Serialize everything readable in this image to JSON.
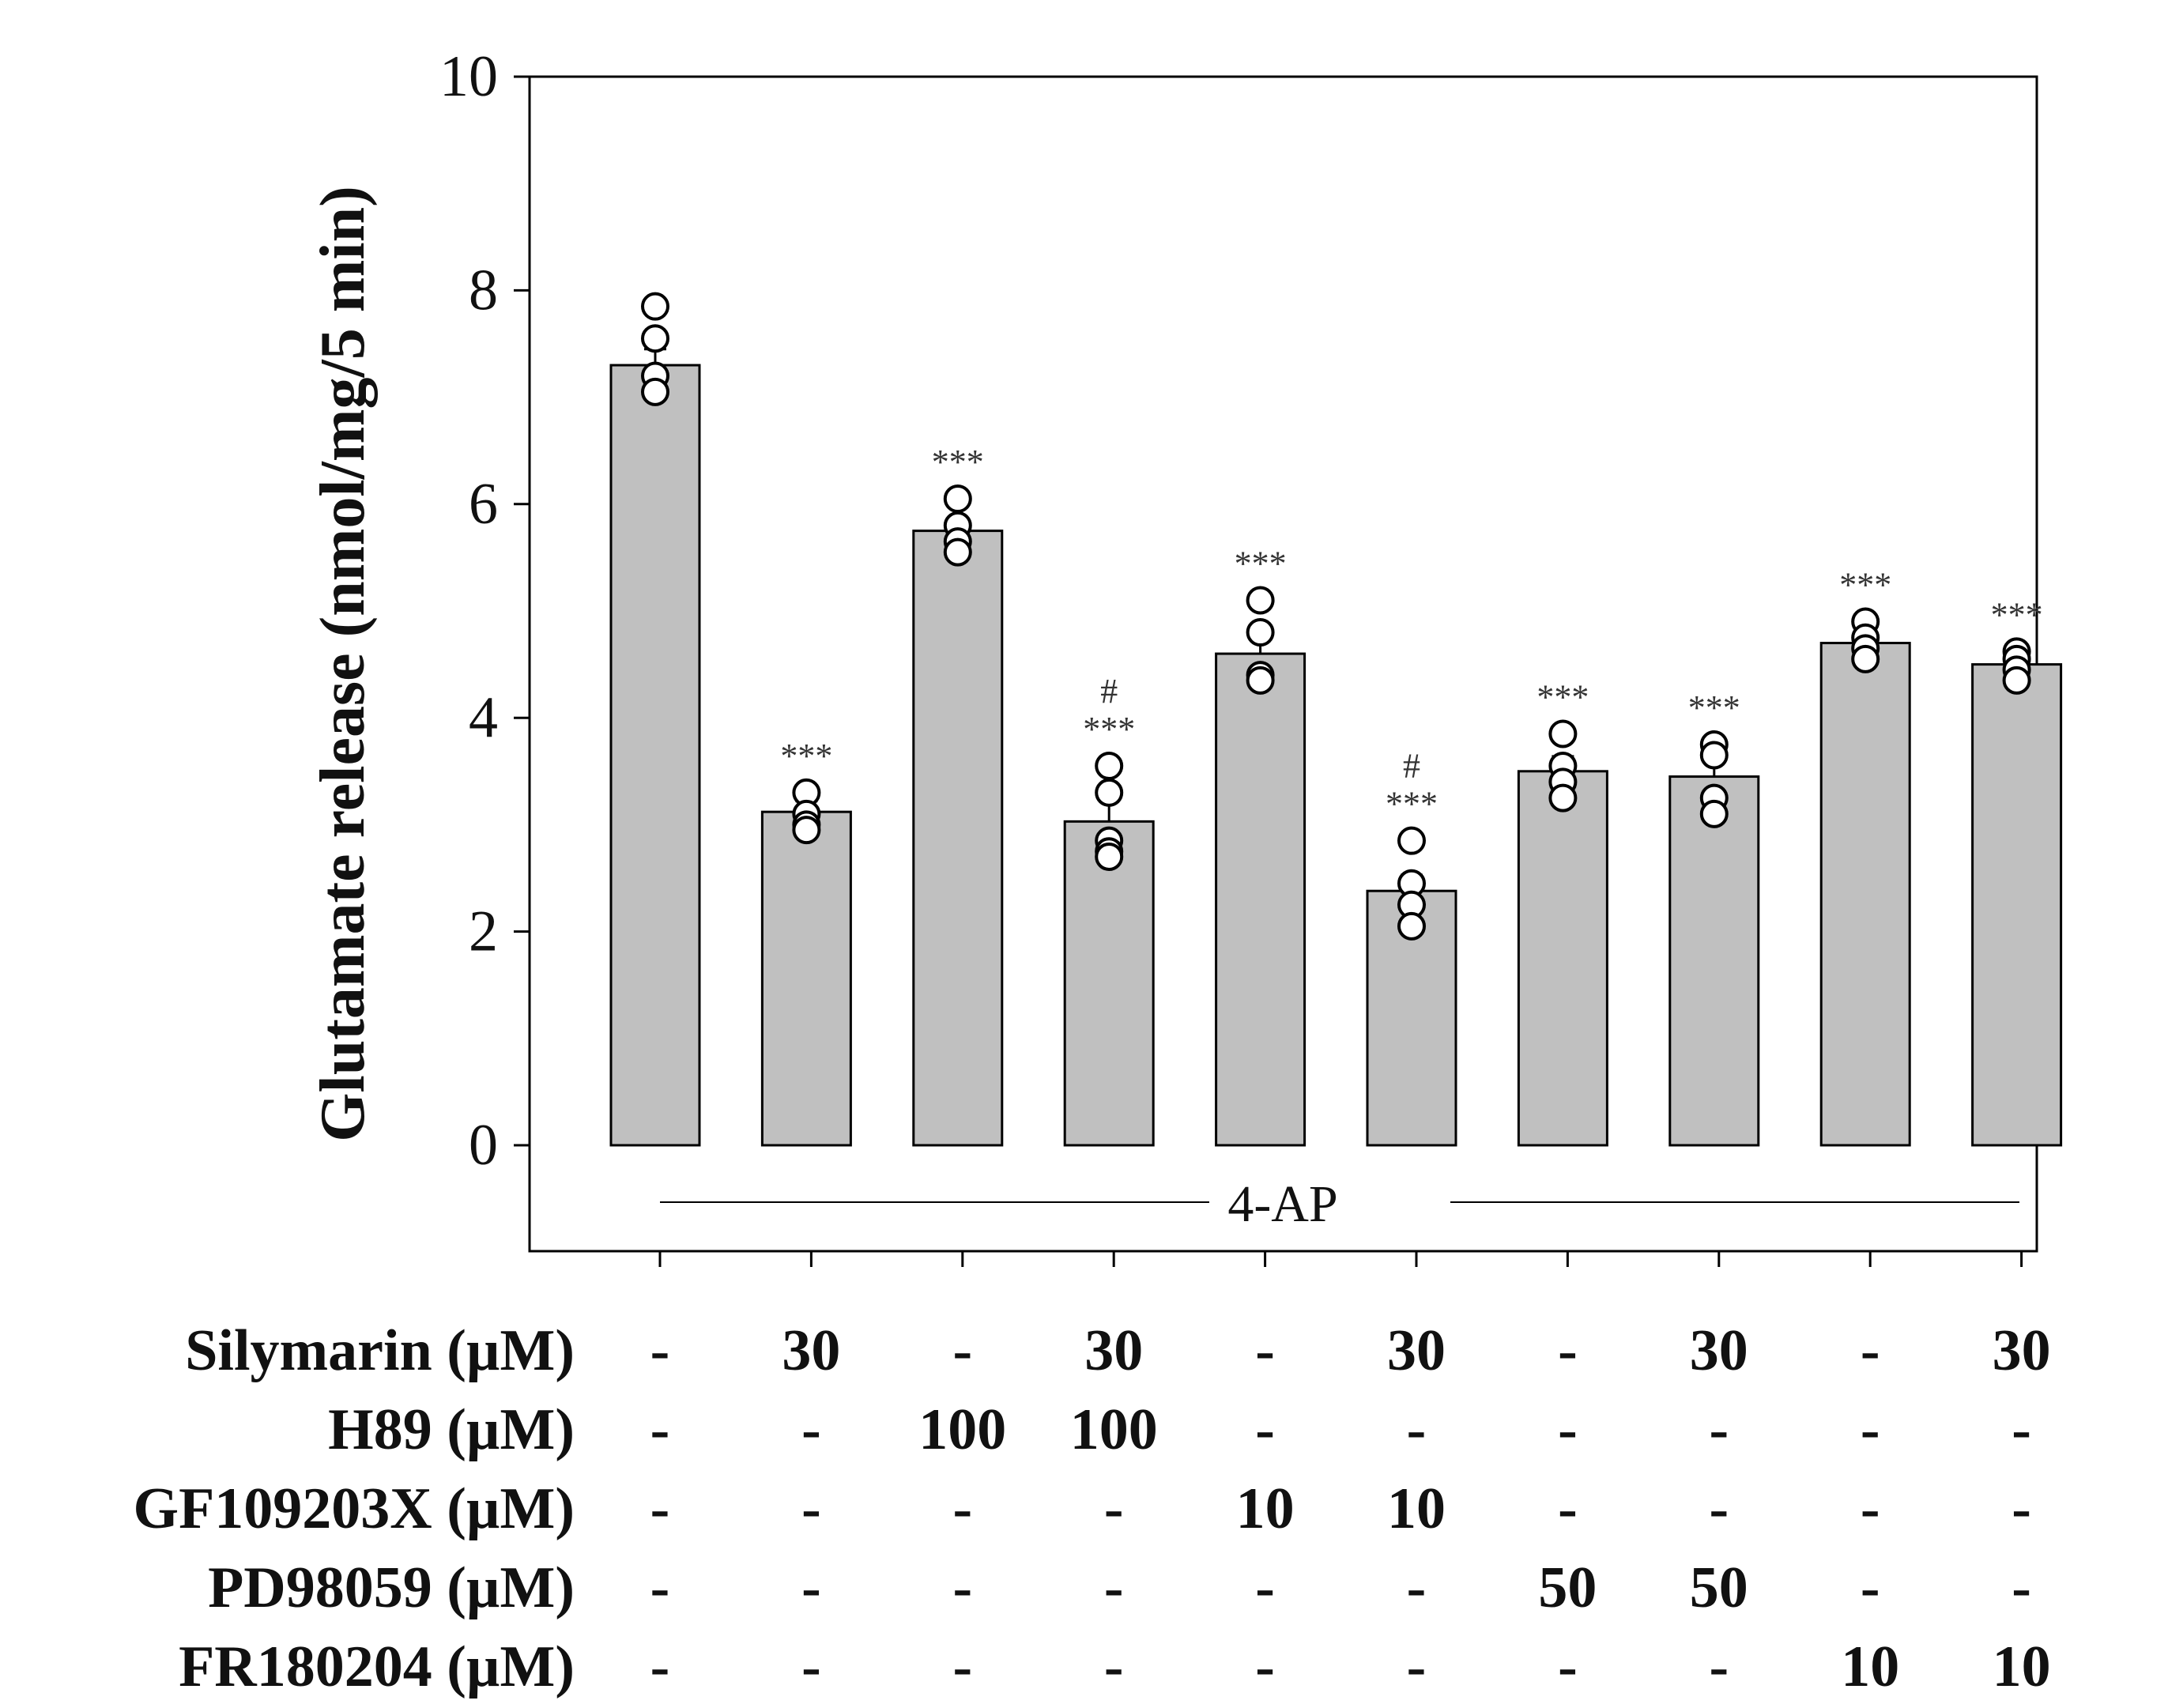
{
  "chart_data": {
    "type": "bar",
    "ylabel": "Glutamate release (nmol/mg/5 min)",
    "ylim": [
      -1,
      10
    ],
    "yticks": [
      0,
      2,
      4,
      6,
      8,
      10
    ],
    "bar_color": "#c0c0c0",
    "stimulus_label": "4-AP",
    "bars": [
      {
        "mean": 7.3,
        "sem": 0.15,
        "points": [
          7.85,
          7.55,
          7.2,
          7.05
        ],
        "sig": ""
      },
      {
        "mean": 3.12,
        "sem": 0.1,
        "points": [
          3.3,
          3.1,
          3.0,
          2.95
        ],
        "sig": "***"
      },
      {
        "mean": 5.75,
        "sem": 0.12,
        "points": [
          6.05,
          5.8,
          5.65,
          5.55
        ],
        "sig": "***"
      },
      {
        "mean": 3.03,
        "sem": 0.2,
        "points": [
          3.55,
          3.3,
          2.85,
          2.75,
          2.7
        ],
        "sig": "***",
        "sig2": "#"
      },
      {
        "mean": 4.6,
        "sem": 0.18,
        "points": [
          5.1,
          4.8,
          4.4,
          4.35
        ],
        "sig": "***"
      },
      {
        "mean": 2.38,
        "sem": 0.15,
        "points": [
          2.85,
          2.45,
          2.25,
          2.05
        ],
        "sig": "***",
        "sig2": "#"
      },
      {
        "mean": 3.5,
        "sem": 0.14,
        "points": [
          3.85,
          3.55,
          3.4,
          3.25
        ],
        "sig": "***"
      },
      {
        "mean": 3.45,
        "sem": 0.16,
        "points": [
          3.75,
          3.65,
          3.25,
          3.1
        ],
        "sig": "***"
      },
      {
        "mean": 4.7,
        "sem": 0.08,
        "points": [
          4.9,
          4.75,
          4.65,
          4.55
        ],
        "sig": "***"
      },
      {
        "mean": 4.5,
        "sem": 0.08,
        "points": [
          4.62,
          4.55,
          4.45,
          4.35
        ],
        "sig": "***"
      }
    ],
    "treatment_table": [
      {
        "label": "Silymarin (µM)",
        "values": [
          "-",
          "30",
          "-",
          "30",
          "-",
          "30",
          "-",
          "30",
          "-",
          "30"
        ]
      },
      {
        "label": "H89 (µM)",
        "values": [
          "-",
          "-",
          "100",
          "100",
          "-",
          "-",
          "-",
          "-",
          "-",
          "-"
        ]
      },
      {
        "label": "GF109203X (µM)",
        "values": [
          "-",
          "-",
          "-",
          "-",
          "10",
          "10",
          "-",
          "-",
          "-",
          "-"
        ]
      },
      {
        "label": "PD98059 (µM)",
        "values": [
          "-",
          "-",
          "-",
          "-",
          "-",
          "-",
          "50",
          "50",
          "-",
          "-"
        ]
      },
      {
        "label": "FR180204 (µM)",
        "values": [
          "-",
          "-",
          "-",
          "-",
          "-",
          "-",
          "-",
          "-",
          "10",
          "10"
        ]
      }
    ]
  }
}
